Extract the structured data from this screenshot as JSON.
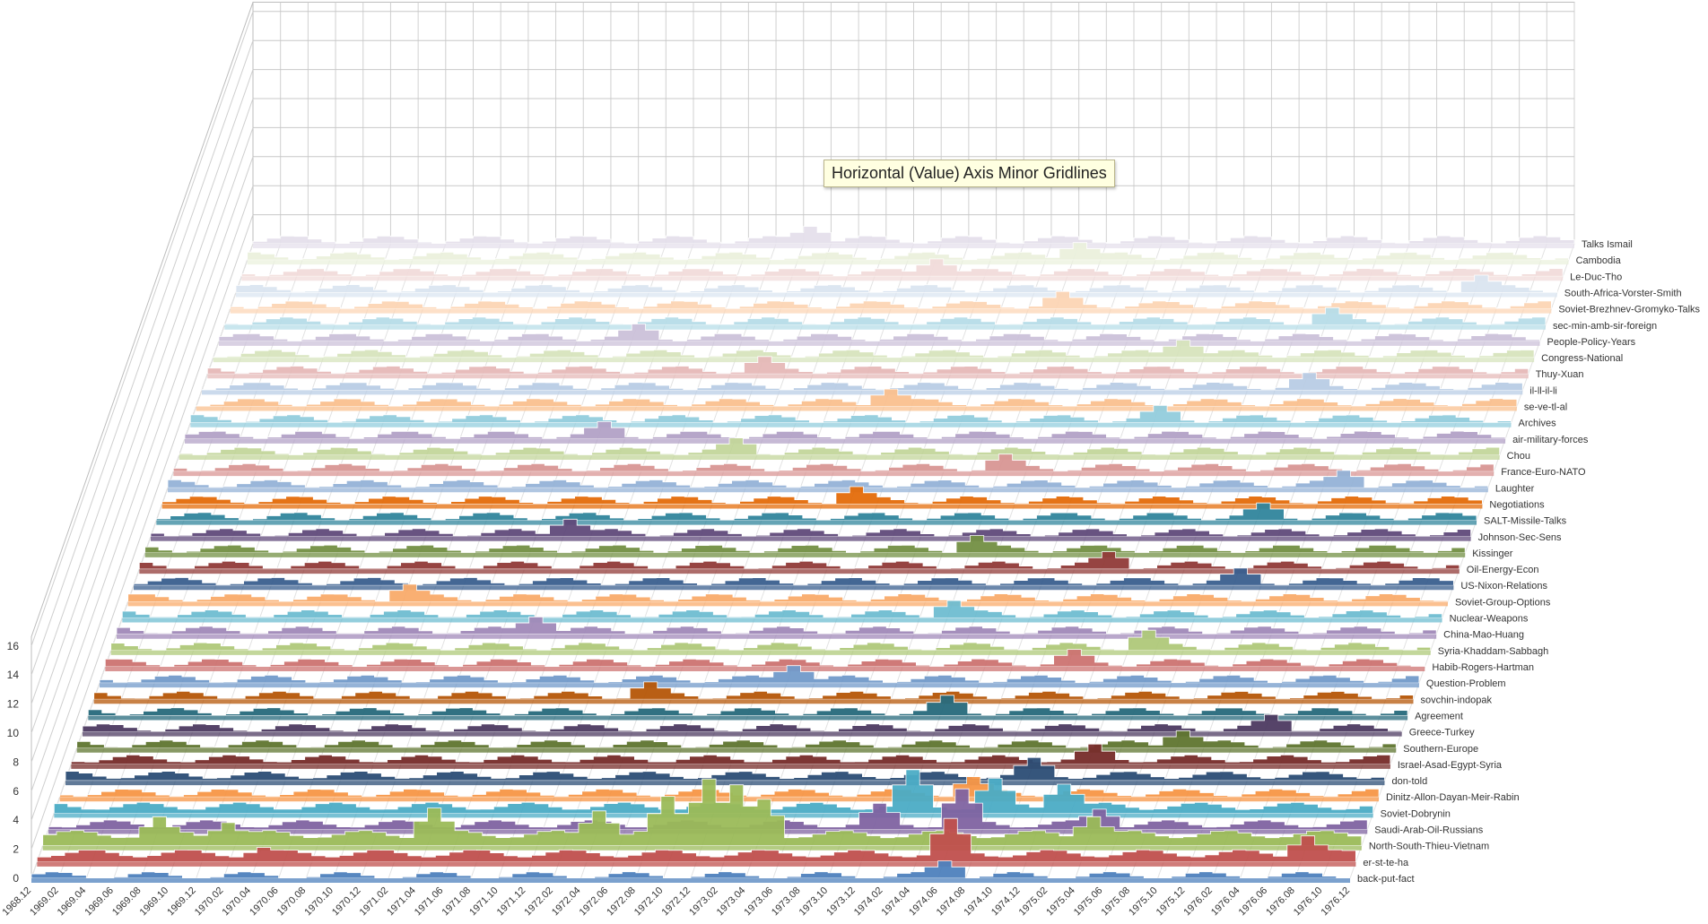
{
  "tooltip": {
    "text": "Horizontal (Value) Axis Minor Gridlines"
  },
  "chart_data": {
    "type": "3d-area",
    "title": "",
    "xlabel": "",
    "ylabel": "",
    "zlim": [
      0,
      16
    ],
    "z_ticks": [
      "0",
      "2",
      "4",
      "6",
      "8",
      "10",
      "12",
      "14",
      "16"
    ],
    "x_ticks": [
      "1968.12",
      "1969.02",
      "1969.04",
      "1969.06",
      "1969.08",
      "1969.10",
      "1969.12",
      "1970.02",
      "1970.04",
      "1970.06",
      "1970.08",
      "1970.10",
      "1970.12",
      "1971.02",
      "1971.04",
      "1971.06",
      "1971.08",
      "1971.10",
      "1971.12",
      "1972.02",
      "1972.04",
      "1972.06",
      "1972.08",
      "1972.10",
      "1972.12",
      "1973.02",
      "1973.04",
      "1973.06",
      "1973.08",
      "1973.10",
      "1973.12",
      "1974.02",
      "1974.04",
      "1974.06",
      "1974.08",
      "1974.10",
      "1974.12",
      "1975.02",
      "1975.04",
      "1975.06",
      "1975.08",
      "1975.10",
      "1975.12",
      "1976.02",
      "1976.04",
      "1976.06",
      "1976.08",
      "1976.10",
      "1976.12"
    ],
    "months": 97,
    "grid": true,
    "series": [
      {
        "name": "back-put-fact",
        "color": "#4f81bd",
        "baseline": 0.2,
        "peaks": [
          [
            66,
            1.2
          ]
        ]
      },
      {
        "name": "er-st-te-ha",
        "color": "#c0504d",
        "baseline": 0.6,
        "peaks": [
          [
            16,
            1.0
          ],
          [
            66,
            3.0
          ],
          [
            92,
            1.8
          ]
        ]
      },
      {
        "name": "North-South-Thieu-Vietnam",
        "color": "#9bbb59",
        "baseline": 0.8,
        "peaks": [
          [
            8,
            2.0
          ],
          [
            13,
            1.6
          ],
          [
            28,
            2.6
          ],
          [
            40,
            2.4
          ],
          [
            45,
            3.4
          ],
          [
            48,
            4.6
          ],
          [
            50,
            4.2
          ],
          [
            52,
            3.2
          ],
          [
            76,
            2.0
          ]
        ]
      },
      {
        "name": "Saudi-Arab-Oil-Russians",
        "color": "#8064a2",
        "baseline": 0.4,
        "peaks": [
          [
            60,
            1.8
          ],
          [
            66,
            2.8
          ],
          [
            76,
            1.4
          ]
        ]
      },
      {
        "name": "Soviet-Dobrynin",
        "color": "#4bacc6",
        "baseline": 0.5,
        "peaks": [
          [
            62,
            3.0
          ],
          [
            68,
            2.4
          ],
          [
            73,
            2.0
          ]
        ]
      },
      {
        "name": "Dinitz-Allon-Dayan-Meir-Rabin",
        "color": "#f79646",
        "baseline": 0.3,
        "peaks": [
          [
            66,
            1.4
          ]
        ]
      },
      {
        "name": "don-told",
        "color": "#2c4d75",
        "baseline": 0.4,
        "peaks": [
          [
            70,
            1.6
          ]
        ]
      },
      {
        "name": "Israel-Asad-Egypt-Syria",
        "color": "#772c2a",
        "baseline": 0.4,
        "peaks": [
          [
            74,
            1.4
          ]
        ]
      },
      {
        "name": "Southern-Europe",
        "color": "#5f7530",
        "baseline": 0.3,
        "peaks": [
          [
            80,
            1.2
          ]
        ]
      },
      {
        "name": "Greece-Turkey",
        "color": "#4d3b62",
        "baseline": 0.3,
        "peaks": [
          [
            86,
            1.2
          ]
        ]
      },
      {
        "name": "Agreement",
        "color": "#276a7c",
        "baseline": 0.3,
        "peaks": [
          [
            62,
            1.4
          ]
        ]
      },
      {
        "name": "sovchin-indopak",
        "color": "#b65708",
        "baseline": 0.3,
        "peaks": [
          [
            40,
            1.2
          ]
        ]
      },
      {
        "name": "Question-Problem",
        "color": "#729aca",
        "baseline": 0.3,
        "peaks": [
          [
            50,
            1.2
          ]
        ]
      },
      {
        "name": "Habib-Rogers-Hartman",
        "color": "#cd7371",
        "baseline": 0.3,
        "peaks": [
          [
            70,
            1.2
          ]
        ]
      },
      {
        "name": "Syria-Khaddam-Sabbagh",
        "color": "#afc97a",
        "baseline": 0.3,
        "peaks": [
          [
            75,
            1.4
          ]
        ]
      },
      {
        "name": "China-Mao-Huang",
        "color": "#a18ab9",
        "baseline": 0.3,
        "peaks": [
          [
            30,
            1.2
          ]
        ]
      },
      {
        "name": "Nuclear-Weapons",
        "color": "#6fbdd1",
        "baseline": 0.3,
        "peaks": [
          [
            60,
            1.2
          ]
        ]
      },
      {
        "name": "Soviet-Group-Options",
        "color": "#f9ab6b",
        "baseline": 0.3,
        "peaks": [
          [
            20,
            1.2
          ]
        ]
      },
      {
        "name": "US-Nixon-Relations",
        "color": "#3a5f8f",
        "baseline": 0.3,
        "peaks": [
          [
            80,
            1.2
          ]
        ]
      },
      {
        "name": "Oil-Energy-Econ",
        "color": "#913b38",
        "baseline": 0.3,
        "peaks": [
          [
            70,
            1.2
          ]
        ]
      },
      {
        "name": "Kissinger",
        "color": "#739044",
        "baseline": 0.3,
        "peaks": [
          [
            60,
            1.2
          ]
        ]
      },
      {
        "name": "Johnson-Sec-Sens",
        "color": "#604a7b",
        "baseline": 0.3,
        "peaks": [
          [
            30,
            1.2
          ]
        ]
      },
      {
        "name": "SALT-Missile-Talks",
        "color": "#31859c",
        "baseline": 0.3,
        "peaks": [
          [
            80,
            1.2
          ]
        ]
      },
      {
        "name": "Negotiations",
        "color": "#e46c0a",
        "baseline": 0.3,
        "peaks": [
          [
            50,
            1.2
          ]
        ]
      },
      {
        "name": "Laughter",
        "color": "#95b3d7",
        "baseline": 0.3,
        "peaks": [
          [
            85,
            1.2
          ]
        ]
      },
      {
        "name": "France-Euro-NATO",
        "color": "#d99694",
        "baseline": 0.3,
        "peaks": [
          [
            60,
            1.2
          ]
        ]
      },
      {
        "name": "Chou",
        "color": "#c3d69b",
        "baseline": 0.3,
        "peaks": [
          [
            40,
            1.2
          ]
        ]
      },
      {
        "name": "air-military-forces",
        "color": "#b3a2c7",
        "baseline": 0.3,
        "peaks": [
          [
            30,
            1.2
          ]
        ]
      },
      {
        "name": "Archives",
        "color": "#93cddd",
        "baseline": 0.3,
        "peaks": [
          [
            70,
            1.2
          ]
        ]
      },
      {
        "name": "se-ve-tl-al",
        "color": "#fac08f",
        "baseline": 0.3,
        "peaks": [
          [
            50,
            1.2
          ]
        ]
      },
      {
        "name": "il-ll-il-li",
        "color": "#b9cde5",
        "baseline": 0.3,
        "peaks": [
          [
            80,
            1.2
          ]
        ]
      },
      {
        "name": "Thuy-Xuan",
        "color": "#e6b9b8",
        "baseline": 0.3,
        "peaks": [
          [
            40,
            1.2
          ]
        ]
      },
      {
        "name": "Congress-National",
        "color": "#d7e4bd",
        "baseline": 0.3,
        "peaks": [
          [
            70,
            1.2
          ]
        ]
      },
      {
        "name": "People-Policy-Years",
        "color": "#ccc1da",
        "baseline": 0.3,
        "peaks": [
          [
            30,
            1.2
          ]
        ]
      },
      {
        "name": "sec-min-amb-sir-foreign",
        "color": "#b7dde8",
        "baseline": 0.3,
        "peaks": [
          [
            80,
            1.2
          ]
        ]
      },
      {
        "name": "Soviet-Brezhnev-Gromyko-Talks",
        "color": "#fcd5b5",
        "baseline": 0.3,
        "peaks": [
          [
            60,
            1.2
          ]
        ]
      },
      {
        "name": "South-Africa-Vorster-Smith",
        "color": "#dbe5f1",
        "baseline": 0.3,
        "peaks": [
          [
            90,
            1.2
          ]
        ]
      },
      {
        "name": "Le-Duc-Tho",
        "color": "#f2dcdb",
        "baseline": 0.3,
        "peaks": [
          [
            50,
            1.2
          ]
        ]
      },
      {
        "name": "Cambodia",
        "color": "#ebf1dd",
        "baseline": 0.3,
        "peaks": [
          [
            60,
            1.2
          ]
        ]
      },
      {
        "name": "Talks Ismail",
        "color": "#e5e0ec",
        "baseline": 0.3,
        "peaks": [
          [
            40,
            1.2
          ]
        ]
      }
    ]
  }
}
